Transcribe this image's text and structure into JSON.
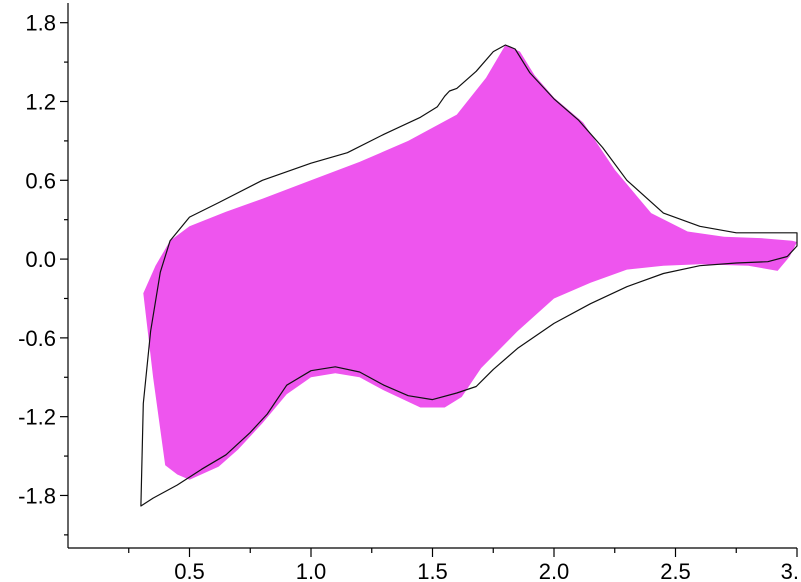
{
  "chart_data": {
    "type": "area",
    "title": "",
    "xlabel": "",
    "ylabel": "",
    "xlim": [
      0.0,
      3.0
    ],
    "ylim": [
      -2.2,
      1.95
    ],
    "grid": false,
    "legend": "none",
    "x_ticks": [
      {
        "value": 0.5,
        "label": "0.5"
      },
      {
        "value": 1.0,
        "label": "1.0"
      },
      {
        "value": 1.5,
        "label": "1.5"
      },
      {
        "value": 2.0,
        "label": "2.0"
      },
      {
        "value": 2.5,
        "label": "2.5"
      },
      {
        "value": 3.0,
        "label": "3."
      }
    ],
    "x_minor_ticks": [
      0.25,
      0.75,
      1.25,
      1.75,
      2.25,
      2.75
    ],
    "y_ticks": [
      {
        "value": 1.8,
        "label": "1.8"
      },
      {
        "value": 1.2,
        "label": "1.2"
      },
      {
        "value": 0.6,
        "label": "0.6"
      },
      {
        "value": 0.0,
        "label": "0.0"
      },
      {
        "value": -0.6,
        "label": "-0.6"
      },
      {
        "value": -1.2,
        "label": "-1.2"
      },
      {
        "value": -1.8,
        "label": "-1.8"
      }
    ],
    "y_minor_ticks": [
      1.5,
      0.9,
      0.3,
      -0.3,
      -0.9,
      -1.5,
      -2.1
    ],
    "series": [
      {
        "kind": "filled-area",
        "color": "#ee55ee",
        "points": [
          [
            0.31,
            -0.26
          ],
          [
            0.36,
            -0.05
          ],
          [
            0.42,
            0.14
          ],
          [
            0.5,
            0.25
          ],
          [
            0.65,
            0.36
          ],
          [
            0.8,
            0.46
          ],
          [
            1.0,
            0.6
          ],
          [
            1.2,
            0.74
          ],
          [
            1.4,
            0.9
          ],
          [
            1.6,
            1.1
          ],
          [
            1.72,
            1.38
          ],
          [
            1.8,
            1.63
          ],
          [
            1.86,
            1.58
          ],
          [
            1.92,
            1.4
          ],
          [
            2.0,
            1.23
          ],
          [
            2.12,
            1.04
          ],
          [
            2.25,
            0.68
          ],
          [
            2.4,
            0.35
          ],
          [
            2.55,
            0.21
          ],
          [
            2.7,
            0.17
          ],
          [
            2.85,
            0.16
          ],
          [
            2.98,
            0.14
          ],
          [
            3.0,
            0.13
          ],
          [
            2.97,
            0.02
          ],
          [
            2.92,
            -0.09
          ],
          [
            2.8,
            -0.05
          ],
          [
            2.6,
            -0.04
          ],
          [
            2.45,
            -0.05
          ],
          [
            2.3,
            -0.08
          ],
          [
            2.15,
            -0.18
          ],
          [
            2.0,
            -0.3
          ],
          [
            1.85,
            -0.55
          ],
          [
            1.7,
            -0.83
          ],
          [
            1.62,
            -1.05
          ],
          [
            1.55,
            -1.13
          ],
          [
            1.45,
            -1.13
          ],
          [
            1.3,
            -1.0
          ],
          [
            1.2,
            -0.9
          ],
          [
            1.1,
            -0.87
          ],
          [
            1.0,
            -0.9
          ],
          [
            0.9,
            -1.03
          ],
          [
            0.8,
            -1.25
          ],
          [
            0.7,
            -1.45
          ],
          [
            0.62,
            -1.58
          ],
          [
            0.5,
            -1.68
          ],
          [
            0.45,
            -1.64
          ],
          [
            0.4,
            -1.57
          ],
          [
            0.35,
            -0.9
          ],
          [
            0.31,
            -0.26
          ]
        ]
      },
      {
        "kind": "closed-line",
        "color": "#111111",
        "points": [
          [
            0.3,
            -1.88
          ],
          [
            0.35,
            -1.82
          ],
          [
            0.45,
            -1.72
          ],
          [
            0.55,
            -1.6
          ],
          [
            0.65,
            -1.49
          ],
          [
            0.75,
            -1.32
          ],
          [
            0.82,
            -1.18
          ],
          [
            0.9,
            -0.96
          ],
          [
            1.0,
            -0.85
          ],
          [
            1.1,
            -0.82
          ],
          [
            1.2,
            -0.86
          ],
          [
            1.3,
            -0.96
          ],
          [
            1.4,
            -1.04
          ],
          [
            1.5,
            -1.07
          ],
          [
            1.6,
            -1.02
          ],
          [
            1.68,
            -0.97
          ],
          [
            1.75,
            -0.84
          ],
          [
            1.85,
            -0.68
          ],
          [
            2.0,
            -0.49
          ],
          [
            2.15,
            -0.34
          ],
          [
            2.3,
            -0.21
          ],
          [
            2.45,
            -0.11
          ],
          [
            2.6,
            -0.05
          ],
          [
            2.75,
            -0.03
          ],
          [
            2.88,
            -0.02
          ],
          [
            2.96,
            0.02
          ],
          [
            3.0,
            0.1
          ],
          [
            3.0,
            0.2
          ],
          [
            2.9,
            0.2
          ],
          [
            2.75,
            0.2
          ],
          [
            2.6,
            0.25
          ],
          [
            2.45,
            0.35
          ],
          [
            2.3,
            0.6
          ],
          [
            2.2,
            0.85
          ],
          [
            2.1,
            1.06
          ],
          [
            2.0,
            1.22
          ],
          [
            1.9,
            1.42
          ],
          [
            1.84,
            1.6
          ],
          [
            1.8,
            1.63
          ],
          [
            1.75,
            1.58
          ],
          [
            1.68,
            1.43
          ],
          [
            1.6,
            1.3
          ],
          [
            1.57,
            1.28
          ],
          [
            1.55,
            1.24
          ],
          [
            1.52,
            1.16
          ],
          [
            1.45,
            1.08
          ],
          [
            1.3,
            0.95
          ],
          [
            1.15,
            0.81
          ],
          [
            1.0,
            0.73
          ],
          [
            0.8,
            0.6
          ],
          [
            0.62,
            0.43
          ],
          [
            0.5,
            0.32
          ],
          [
            0.42,
            0.14
          ],
          [
            0.38,
            -0.1
          ],
          [
            0.34,
            -0.55
          ],
          [
            0.31,
            -1.1
          ],
          [
            0.3,
            -1.88
          ]
        ]
      }
    ]
  }
}
